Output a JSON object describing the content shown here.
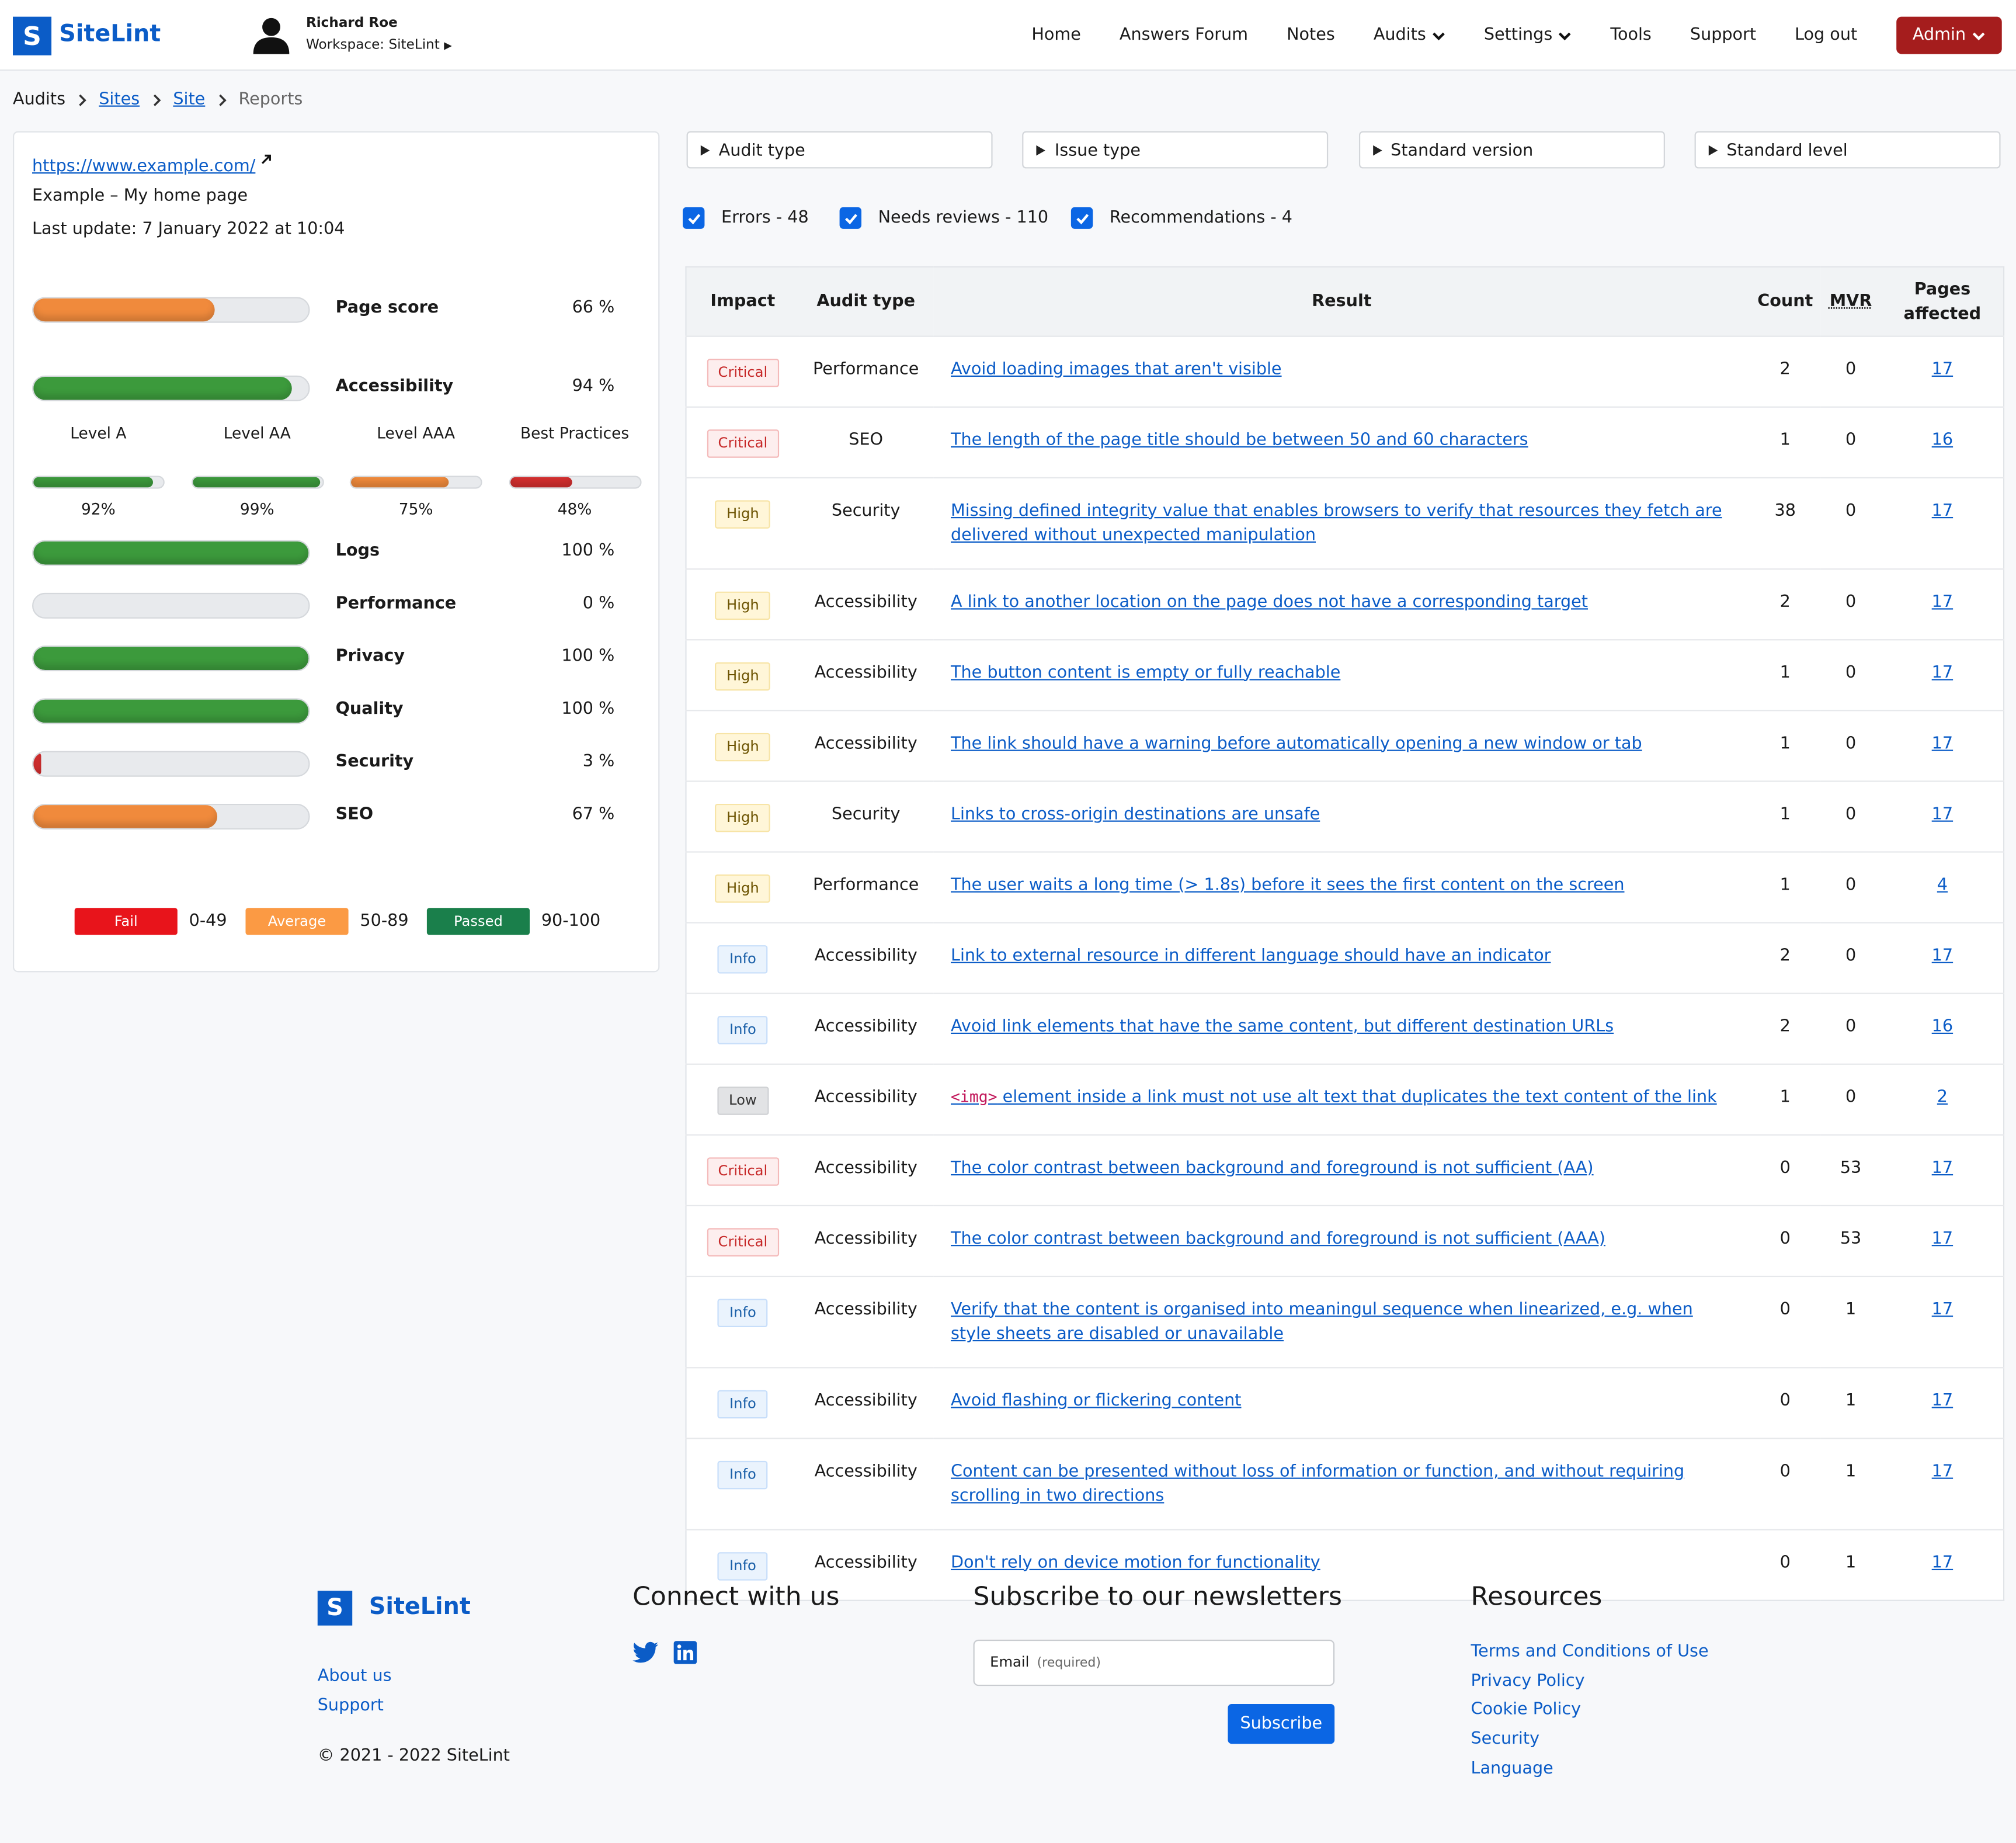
{
  "header": {
    "logo": "SiteLint",
    "user_name": "Richard Roe",
    "workspace": "Workspace: SiteLint",
    "nav": [
      {
        "label": "Home"
      },
      {
        "label": "Answers Forum"
      },
      {
        "label": "Notes"
      },
      {
        "label": "Audits",
        "dropdown": true
      },
      {
        "label": "Settings",
        "dropdown": true
      },
      {
        "label": "Tools"
      },
      {
        "label": "Support"
      },
      {
        "label": "Log out"
      }
    ],
    "admin": "Admin"
  },
  "breadcrumb": [
    {
      "label": "Audits",
      "link": false
    },
    {
      "label": "Sites",
      "link": true
    },
    {
      "label": "Site",
      "link": true
    },
    {
      "label": "Reports",
      "link": false,
      "current": true
    }
  ],
  "site": {
    "url": "https://www.example.com/",
    "name": "Example – My home page",
    "last_update": "Last update: 7 January 2022 at 10:04"
  },
  "main_scores": [
    {
      "name": "Page score",
      "value": 66,
      "label": "66 %",
      "color": "#f08a3c"
    },
    {
      "name": "Accessibility",
      "value": 94,
      "label": "94 %",
      "color": "#3c9a3c"
    }
  ],
  "levels": [
    {
      "name": "Level A",
      "value": 92,
      "label": "92%",
      "color": "#3c9a3c"
    },
    {
      "name": "Level AA",
      "value": 99,
      "label": "99%",
      "color": "#3c9a3c"
    },
    {
      "name": "Level AAA",
      "value": 75,
      "label": "75%",
      "color": "#f08a3c"
    },
    {
      "name": "Best Practices",
      "value": 48,
      "label": "48%",
      "color": "#d32f2f"
    }
  ],
  "categories": [
    {
      "name": "Logs",
      "value": 100,
      "label": "100 %",
      "color": "#3c9a3c"
    },
    {
      "name": "Performance",
      "value": 0,
      "label": "0 %",
      "color": "#d32f2f"
    },
    {
      "name": "Privacy",
      "value": 100,
      "label": "100 %",
      "color": "#3c9a3c"
    },
    {
      "name": "Quality",
      "value": 100,
      "label": "100 %",
      "color": "#3c9a3c"
    },
    {
      "name": "Security",
      "value": 3,
      "label": "3 %",
      "color": "#d32f2f"
    },
    {
      "name": "SEO",
      "value": 67,
      "label": "67 %",
      "color": "#f08a3c"
    }
  ],
  "legend": [
    {
      "name": "Fail",
      "range": "0-49",
      "color": "#e8141b"
    },
    {
      "name": "Average",
      "range": "50-89",
      "color": "#fb9a44"
    },
    {
      "name": "Passed",
      "range": "90-100",
      "color": "#1a7f4b"
    }
  ],
  "filters": [
    "Audit type",
    "Issue type",
    "Standard version",
    "Standard level"
  ],
  "checks": [
    "Errors - 48",
    "Needs reviews - 110",
    "Recommendations - 4"
  ],
  "table": {
    "columns": [
      "Impact",
      "Audit type",
      "Result",
      "Count",
      "MVR",
      "Pages affected"
    ],
    "rows": [
      {
        "impact": "Critical",
        "audit_type": "Performance",
        "result": "Avoid loading images that aren't visible",
        "count": 2,
        "mvr": 0,
        "pages": 17
      },
      {
        "impact": "Critical",
        "audit_type": "SEO",
        "result": "The length of the page title should be between 50 and 60 characters",
        "count": 1,
        "mvr": 0,
        "pages": 16
      },
      {
        "impact": "High",
        "audit_type": "Security",
        "result": "Missing defined integrity value that enables browsers to verify that resources they fetch are delivered without unexpected manipulation",
        "count": 38,
        "mvr": 0,
        "pages": 17
      },
      {
        "impact": "High",
        "audit_type": "Accessibility",
        "result": "A link to another location on the page does not have a corresponding target",
        "count": 2,
        "mvr": 0,
        "pages": 17
      },
      {
        "impact": "High",
        "audit_type": "Accessibility",
        "result": "The button content is empty or fully reachable",
        "count": 1,
        "mvr": 0,
        "pages": 17
      },
      {
        "impact": "High",
        "audit_type": "Accessibility",
        "result": "The link should have a warning before automatically opening a new window or tab",
        "count": 1,
        "mvr": 0,
        "pages": 17
      },
      {
        "impact": "High",
        "audit_type": "Security",
        "result": "Links to cross-origin destinations are unsafe",
        "count": 1,
        "mvr": 0,
        "pages": 17
      },
      {
        "impact": "High",
        "audit_type": "Performance",
        "result": "The user waits a long time (> 1.8s) before it sees the first content on the screen",
        "count": 1,
        "mvr": 0,
        "pages": 4
      },
      {
        "impact": "Info",
        "audit_type": "Accessibility",
        "result": "Link to external resource in different language should have an indicator",
        "count": 2,
        "mvr": 0,
        "pages": 17
      },
      {
        "impact": "Info",
        "audit_type": "Accessibility",
        "result": "Avoid link elements that have the same content, but different destination URLs",
        "count": 2,
        "mvr": 0,
        "pages": 16
      },
      {
        "impact": "Low",
        "audit_type": "Accessibility",
        "result_code": "<img>",
        "result": " element inside a link must not use alt text that duplicates the text content of the link",
        "count": 1,
        "mvr": 0,
        "pages": 2
      },
      {
        "impact": "Critical",
        "audit_type": "Accessibility",
        "result": "The color contrast between background and foreground is not sufficient (AA)",
        "count": 0,
        "mvr": 53,
        "pages": 17
      },
      {
        "impact": "Critical",
        "audit_type": "Accessibility",
        "result": "The color contrast between background and foreground is not sufficient (AAA)",
        "count": 0,
        "mvr": 53,
        "pages": 17
      },
      {
        "impact": "Info",
        "audit_type": "Accessibility",
        "result": "Verify that the content is organised into meaningul sequence when linearized, e.g. when style sheets are disabled or unavailable",
        "count": 0,
        "mvr": 1,
        "pages": 17
      },
      {
        "impact": "Info",
        "audit_type": "Accessibility",
        "result": "Avoid flashing or flickering content",
        "count": 0,
        "mvr": 1,
        "pages": 17
      },
      {
        "impact": "Info",
        "audit_type": "Accessibility",
        "result": "Content can be presented without loss of information or function, and without requiring scrolling in two directions",
        "count": 0,
        "mvr": 1,
        "pages": 17
      },
      {
        "impact": "Info",
        "audit_type": "Accessibility",
        "result": "Don't rely on device motion for functionality",
        "count": 0,
        "mvr": 1,
        "pages": 17
      }
    ]
  },
  "footer": {
    "logo": "SiteLint",
    "links": [
      "About us",
      "Support"
    ],
    "copyright": "© 2021 - 2022 SiteLint",
    "connect": "Connect with us",
    "subscribe_title": "Subscribe to our newsletters",
    "email_label": "Email",
    "email_required": "(required)",
    "subscribe_button": "Subscribe",
    "resources_title": "Resources",
    "resources": [
      "Terms and Conditions of Use",
      "Privacy Policy",
      "Cookie Policy",
      "Security",
      "Language"
    ]
  }
}
